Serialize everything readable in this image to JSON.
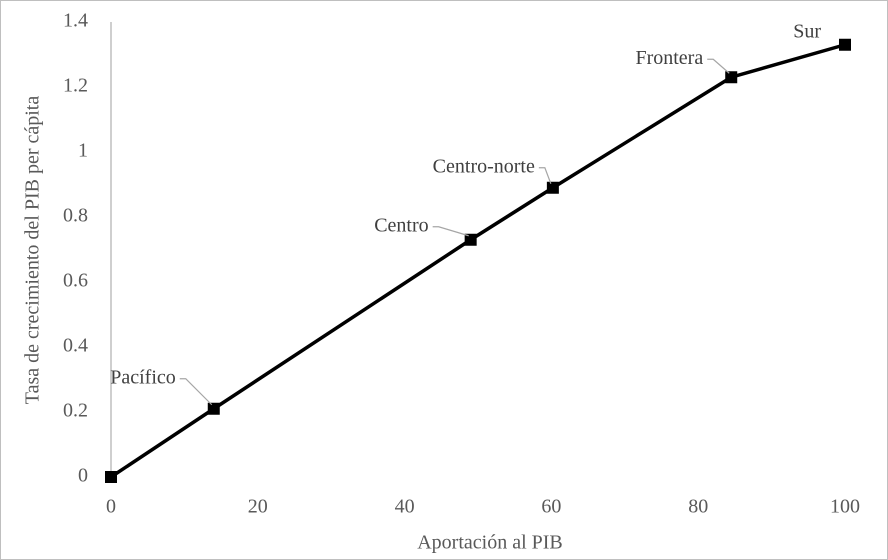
{
  "chart_data": {
    "type": "line",
    "x_label": "Aportación al PIB",
    "y_label": "Tasa de crecimiento del PIB per cápita",
    "x": [
      0,
      14,
      49,
      60.2,
      84.5,
      100
    ],
    "values": [
      0,
      0.21,
      0.73,
      0.89,
      1.23,
      1.33
    ],
    "point_labels": [
      null,
      "Pacífico",
      "Centro",
      "Centro-norte",
      "Frontera",
      "Sur"
    ],
    "color": "#000000",
    "xlim": [
      0,
      100
    ],
    "xticks": [
      0,
      20,
      40,
      60,
      80,
      100
    ],
    "ylim": [
      0,
      1.4
    ],
    "yticks": [
      0,
      0.2,
      0.4,
      0.6,
      0.8,
      1,
      1.2,
      1.4
    ],
    "grid": false
  }
}
